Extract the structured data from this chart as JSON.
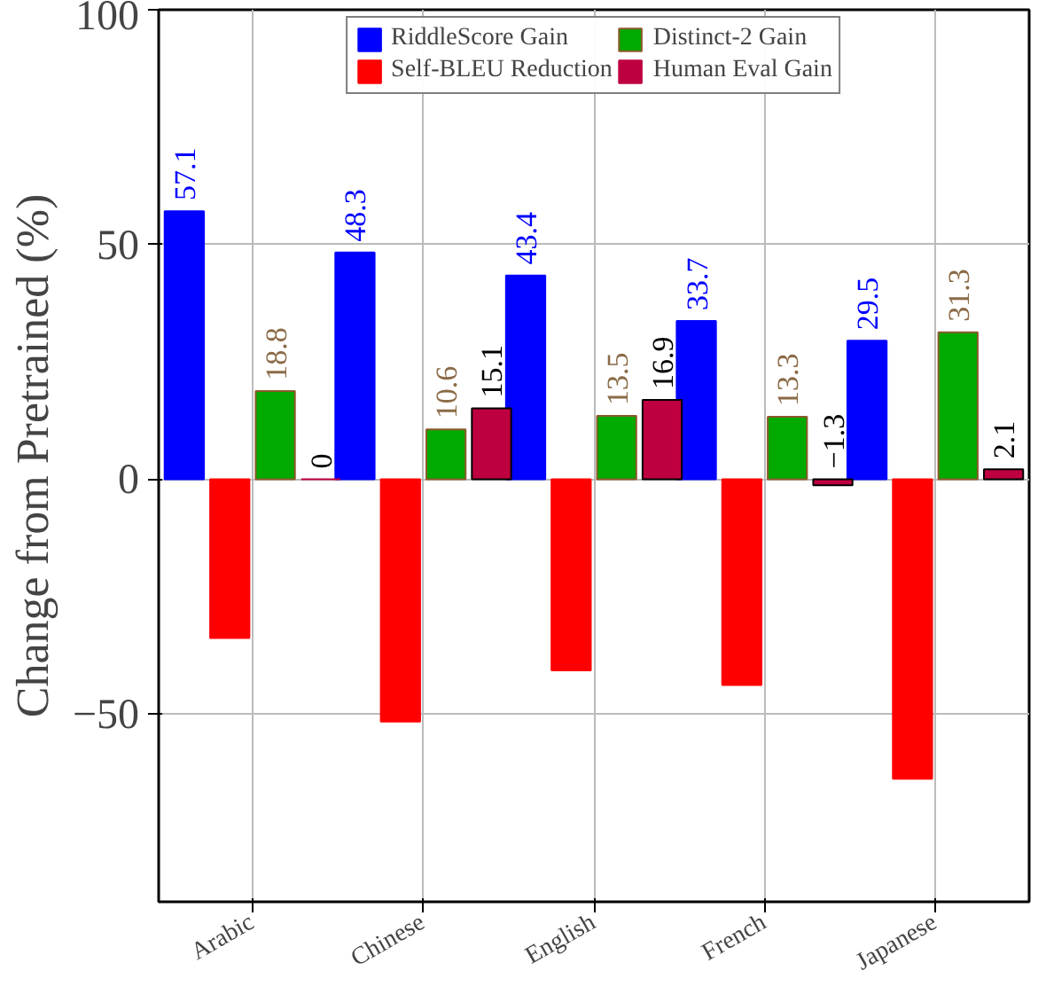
{
  "chart_data": {
    "type": "bar",
    "ylabel": "Change from Pretrained (%)",
    "categories": [
      "Arabic",
      "Chinese",
      "English",
      "French",
      "Japanese"
    ],
    "series": [
      {
        "name": "RiddleScore Gain",
        "color": "#0000ff",
        "values": [
          57.1,
          48.3,
          43.4,
          33.7,
          29.5
        ],
        "value_labels": [
          "57.1",
          "48.3",
          "43.4",
          "33.7",
          "29.5"
        ]
      },
      {
        "name": "Self-BLEU Reduction",
        "color": "#ff0000",
        "values": [
          -33.8,
          -51.6,
          -40.7,
          -43.8,
          -63.8
        ]
      },
      {
        "name": "Distinct-2 Gain",
        "color": "#00aa00",
        "values": [
          18.8,
          10.6,
          13.5,
          13.3,
          31.3
        ],
        "value_labels": [
          "18.8",
          "10.6",
          "13.5",
          "13.3",
          "31.3"
        ]
      },
      {
        "name": "Human Eval Gain",
        "color": "#bf0040",
        "values": [
          0,
          15.1,
          16.9,
          -1.3,
          2.1
        ],
        "value_labels": [
          "0",
          "15.1",
          "16.9",
          "−1.3",
          "2.1"
        ]
      }
    ],
    "ylim": [
      -90,
      100
    ],
    "yticks": [
      {
        "value": -50,
        "label": "−50"
      },
      0,
      50,
      100
    ],
    "grid": true,
    "legend": "top"
  }
}
